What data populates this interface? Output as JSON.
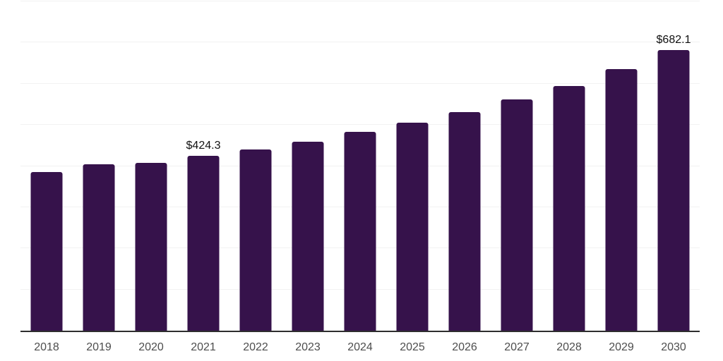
{
  "chart_data": {
    "type": "bar",
    "title": "",
    "xlabel": "",
    "ylabel": "",
    "categories": [
      "2018",
      "2019",
      "2020",
      "2021",
      "2022",
      "2023",
      "2024",
      "2025",
      "2026",
      "2027",
      "2028",
      "2029",
      "2030"
    ],
    "values": [
      386.0,
      404.0,
      407.2,
      424.3,
      439.6,
      458.3,
      483.1,
      505.2,
      531.3,
      561.7,
      594.8,
      635.6,
      682.1
    ],
    "data_labels": [
      "",
      "",
      "",
      "$424.3",
      "",
      "",
      "",
      "",
      "",
      "",
      "",
      "",
      "$682.1"
    ],
    "ylim": [
      0,
      800
    ],
    "y_gridline_interval": 100,
    "y_tick_labels_visible": false,
    "grid": "horizontal-only",
    "legend": "none",
    "colors": {
      "bar": "#36124B",
      "gridline": "#F2F2F2",
      "axis_line": "#2E2E2E",
      "x_tick_label": "#4D4D4D",
      "data_label": "#111111",
      "background": "#FFFFFF"
    }
  }
}
